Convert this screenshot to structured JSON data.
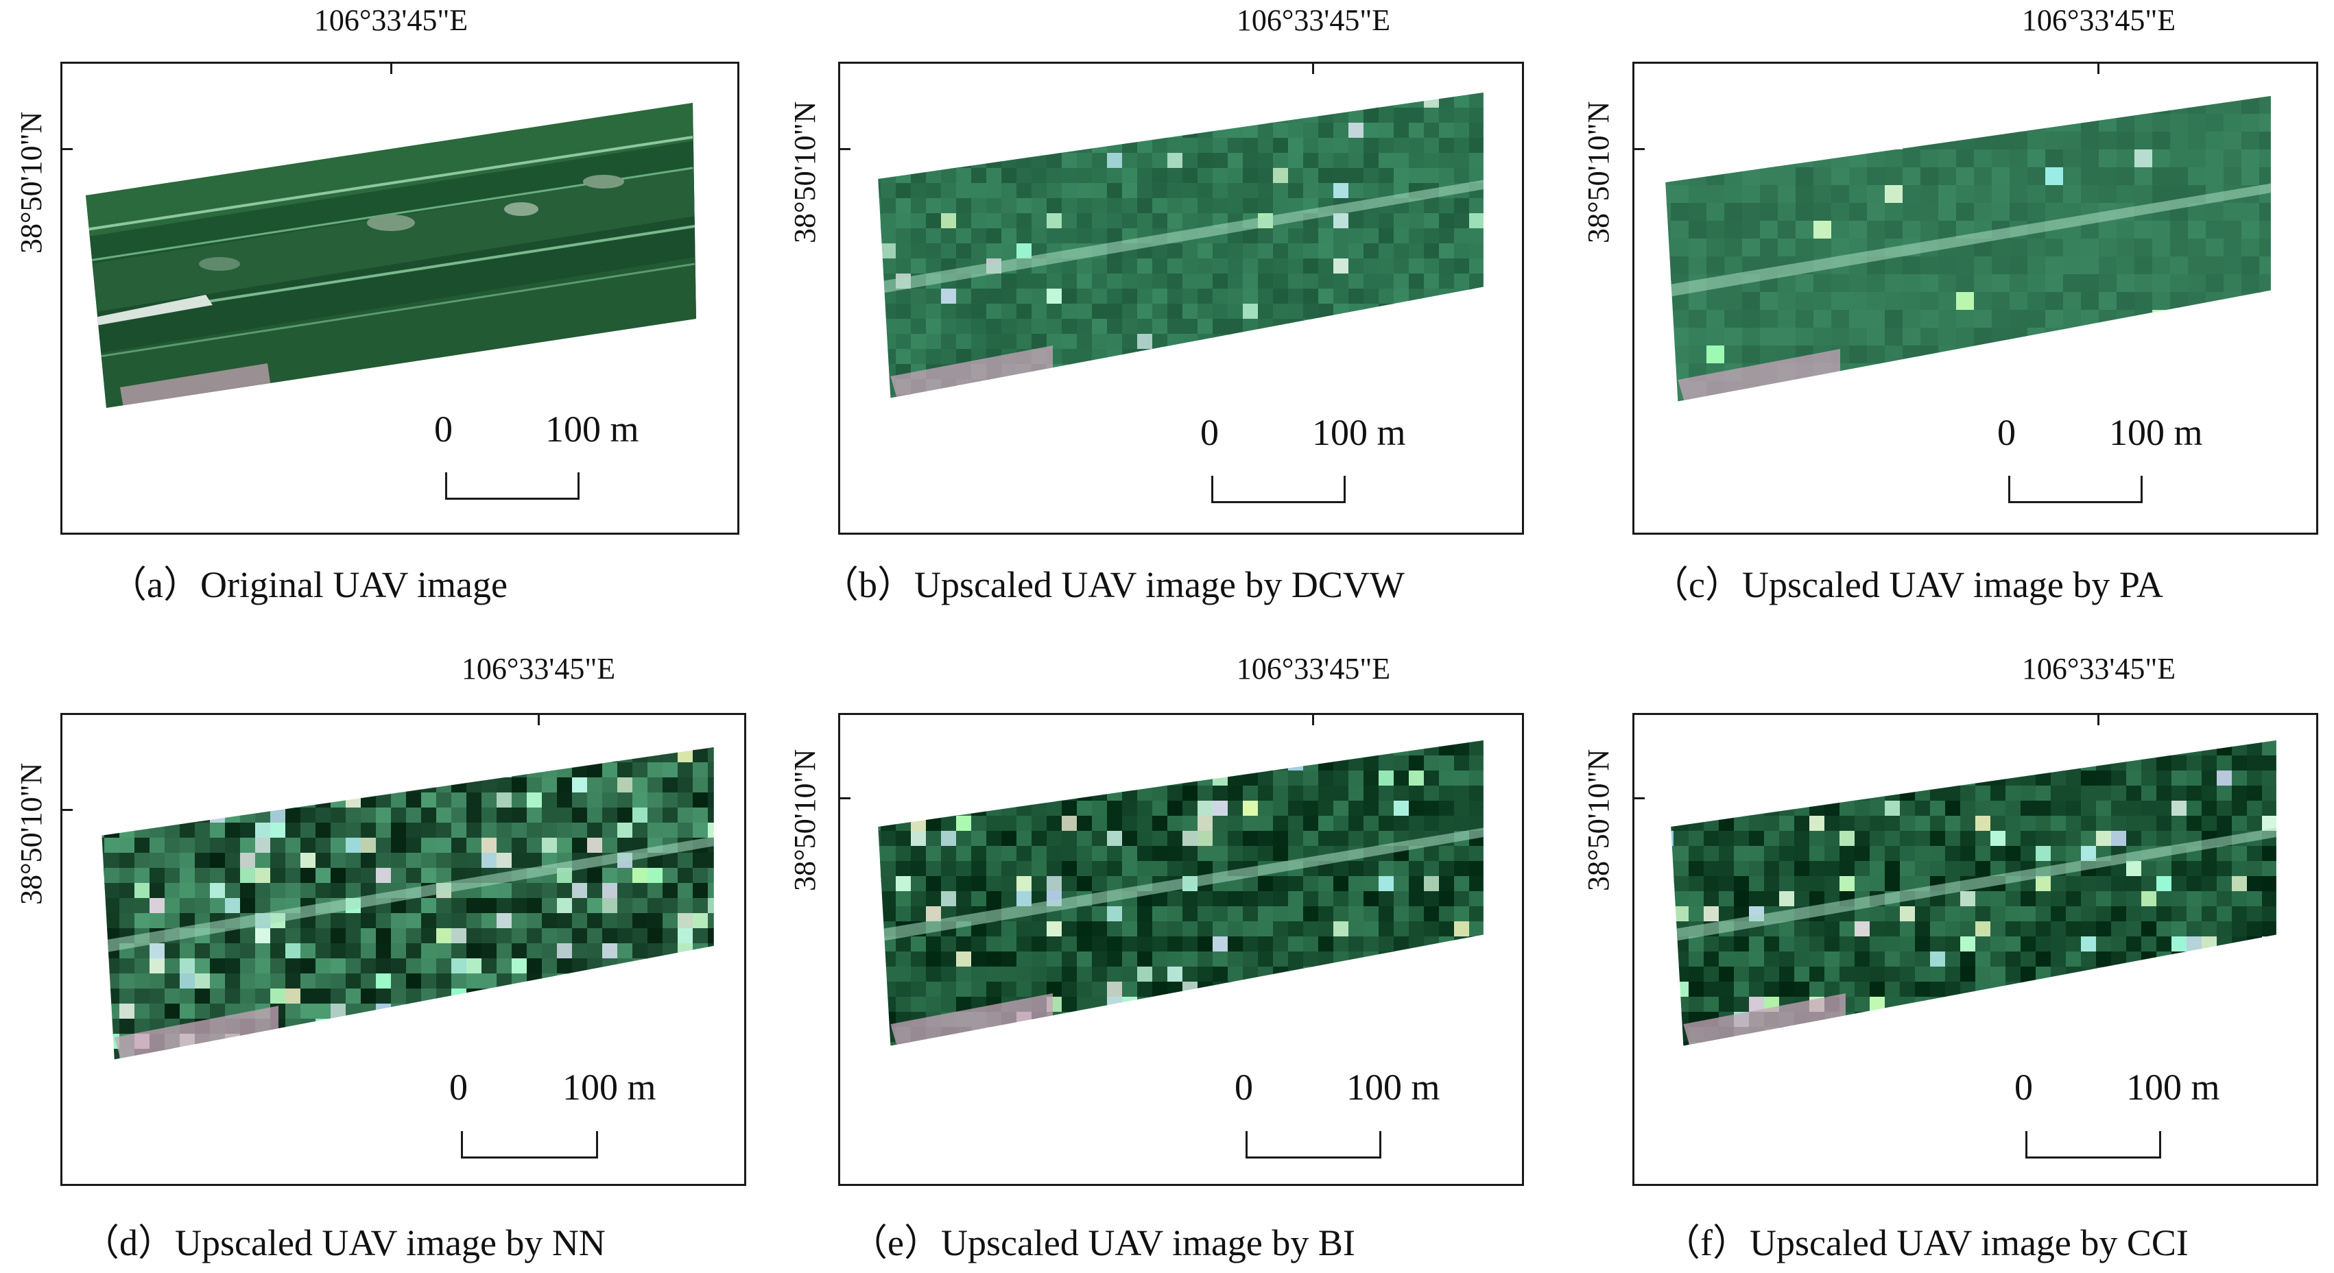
{
  "figure": {
    "panels": [
      {
        "id": "a",
        "caption": "（a）Original UAV image",
        "lon": "106°33'45\"E",
        "lat": "38°50'10\"N",
        "scale_start": "0",
        "scale_end": "100 m",
        "style": "original"
      },
      {
        "id": "b",
        "caption": "（b）Upscaled UAV image by DCVW",
        "lon": "106°33'45\"E",
        "lat": "38°50'10\"N",
        "scale_start": "0",
        "scale_end": "100 m",
        "style": "smooth"
      },
      {
        "id": "c",
        "caption": "（c）Upscaled UAV image by PA",
        "lon": "106°33'45\"E",
        "lat": "38°50'10\"N",
        "scale_start": "0",
        "scale_end": "100 m",
        "style": "soft"
      },
      {
        "id": "d",
        "caption": "（d）Upscaled UAV image by NN",
        "lon": "106°33'45\"E",
        "lat": "38°50'10\"N",
        "scale_start": "0",
        "scale_end": "100 m",
        "style": "noisy"
      },
      {
        "id": "e",
        "caption": "（e）Upscaled UAV image by BI",
        "lon": "106°33'45\"E",
        "lat": "38°50'10\"N",
        "scale_start": "0",
        "scale_end": "100 m",
        "style": "dark"
      },
      {
        "id": "f",
        "caption": "（f）Upscaled UAV image by CCI",
        "lon": "106°33'45\"E",
        "lat": "38°50'10\"N",
        "scale_start": "0",
        "scale_end": "100 m",
        "style": "dark"
      }
    ]
  },
  "colors": {
    "frame": "#1a1a1a",
    "field_base": "#1f5a35",
    "field_light": "#5fa878",
    "field_dark": "#0d2a18",
    "soil_pink": "#c9a9b8"
  }
}
